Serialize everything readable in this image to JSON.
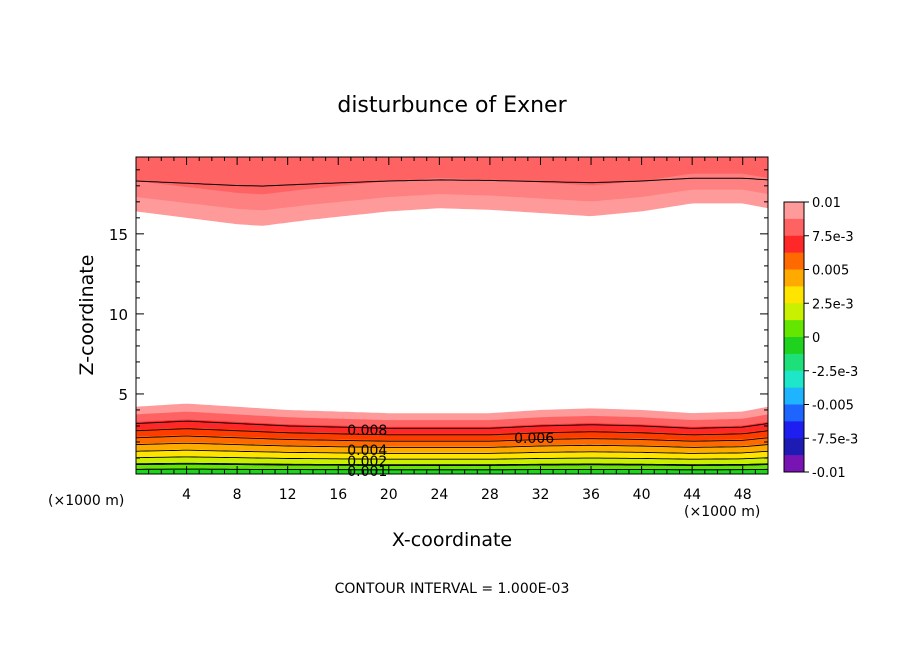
{
  "chart_data": {
    "type": "heatmap",
    "subtype": "filled-contour",
    "title": "disturbunce of Exner",
    "xlabel": "X-coordinate",
    "ylabel": "Z-coordinate",
    "x_unit": "(×1000 m)",
    "y_unit": "(×1000 m)",
    "xlim": [
      0,
      50
    ],
    "ylim": [
      0,
      19.8
    ],
    "x_ticks": [
      4,
      8,
      12,
      16,
      20,
      24,
      28,
      32,
      36,
      40,
      44,
      48
    ],
    "y_ticks": [
      5,
      10,
      15
    ],
    "footer": "CONTOUR INTERVAL = 1.000E-03",
    "colorbar": {
      "range": [
        -0.01,
        0.01
      ],
      "labels": [
        "0.01",
        "7.5e-3",
        "0.005",
        "2.5e-3",
        "0",
        "-2.5e-3",
        "-0.005",
        "-7.5e-3",
        "-0.01"
      ],
      "colors": [
        "#ff9a9a",
        "#ff6262",
        "#ff2828",
        "#ff6a00",
        "#ffaa00",
        "#ffe400",
        "#c8f000",
        "#64e600",
        "#1ed21e",
        "#1ee078",
        "#1ee6c8",
        "#1eb4ff",
        "#1e64ff",
        "#1e1ef0",
        "#1e1ab4",
        "#7814b4"
      ]
    },
    "contour_labels": [
      {
        "text": "0.008",
        "x": 18.3,
        "z": 2.75
      },
      {
        "text": "0.006",
        "x": 31.5,
        "z": 2.25
      },
      {
        "text": "0.004",
        "x": 18.3,
        "z": 1.5
      },
      {
        "text": "0.002",
        "x": 18.3,
        "z": 0.8
      },
      {
        "text": "0.001",
        "x": 18.3,
        "z": 0.2
      }
    ],
    "bottom_band": {
      "levels": [
        0.01,
        0.009,
        0.008,
        0.007,
        0.006,
        0.005,
        0.004,
        0.003,
        0.002,
        0.001
      ],
      "colors": [
        "#ff9a9a",
        "#ff6262",
        "#ff2828",
        "#ff3c00",
        "#ff6a00",
        "#ffaa00",
        "#ffe400",
        "#c8f000",
        "#64e600",
        "#1ed21e"
      ],
      "z_at_x": {
        "x": [
          0,
          4,
          8,
          12,
          16,
          20,
          24,
          28,
          32,
          36,
          40,
          44,
          48,
          50
        ],
        "level_0.01": [
          4.2,
          4.4,
          4.2,
          4.0,
          3.9,
          3.8,
          3.8,
          3.8,
          4.0,
          4.1,
          4.0,
          3.8,
          3.9,
          4.2
        ]
      }
    },
    "top_band": {
      "levels": [
        0.01,
        0.009,
        0.008
      ],
      "colors": [
        "#ff9a9a",
        "#ff8080",
        "#ff6262"
      ],
      "z_at_x": {
        "x": [
          0,
          4,
          8,
          10,
          14,
          20,
          24,
          28,
          32,
          36,
          40,
          44,
          48,
          50
        ],
        "level_0.01": [
          16.4,
          16.0,
          15.6,
          15.5,
          15.9,
          16.4,
          16.6,
          16.5,
          16.3,
          16.1,
          16.4,
          16.9,
          16.9,
          16.6
        ]
      }
    }
  }
}
